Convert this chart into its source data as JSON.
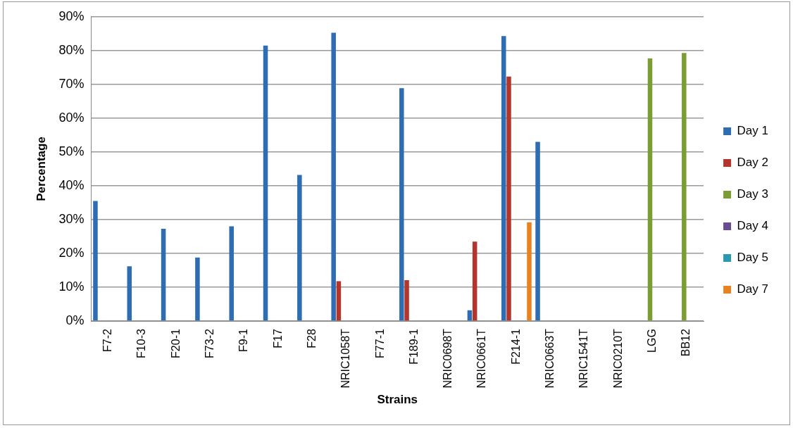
{
  "chart_data": {
    "type": "bar",
    "xlabel": "Strains",
    "ylabel": "Percentage",
    "categories": [
      "F7-2",
      "F10-3",
      "F20-1",
      "F73-2",
      "F9-1",
      "F17",
      "F28",
      "NRIC1058T",
      "F77-1",
      "F189-1",
      "NRIC0698T",
      "NRIC0661T",
      "F214-1",
      "NRIC0663T",
      "NRIC1541T",
      "NRIC0210T",
      "LGG",
      "BB12"
    ],
    "series": [
      {
        "name": "Day 1",
        "color": "#2f6db3",
        "values": [
          35.5,
          16.2,
          27.3,
          18.8,
          28.0,
          81.5,
          43.2,
          85.3,
          null,
          68.9,
          null,
          3.2,
          84.3,
          53.0,
          null,
          null,
          null,
          null
        ]
      },
      {
        "name": "Day 2",
        "color": "#b3352b",
        "values": [
          null,
          null,
          null,
          null,
          null,
          null,
          null,
          11.8,
          null,
          12.1,
          null,
          23.5,
          72.3,
          null,
          null,
          null,
          null,
          null
        ]
      },
      {
        "name": "Day 3",
        "color": "#7c9c34",
        "values": [
          null,
          null,
          null,
          null,
          null,
          null,
          null,
          null,
          null,
          null,
          null,
          null,
          null,
          null,
          null,
          null,
          77.7,
          79.3
        ]
      },
      {
        "name": "Day 4",
        "color": "#6a4b8e",
        "values": [
          null,
          null,
          null,
          null,
          null,
          null,
          null,
          null,
          null,
          null,
          null,
          null,
          null,
          null,
          null,
          null,
          null,
          null
        ]
      },
      {
        "name": "Day 5",
        "color": "#2a98b0",
        "values": [
          null,
          null,
          null,
          null,
          null,
          null,
          null,
          null,
          null,
          null,
          null,
          null,
          null,
          null,
          null,
          null,
          null,
          null
        ]
      },
      {
        "name": "Day 7",
        "color": "#e8821e",
        "values": [
          null,
          null,
          null,
          null,
          null,
          null,
          null,
          null,
          null,
          null,
          null,
          null,
          29.2,
          null,
          null,
          null,
          null,
          null
        ]
      }
    ],
    "ylim": [
      0,
      90
    ],
    "yticks": [
      {
        "value": 0,
        "label": "0%"
      },
      {
        "value": 10,
        "label": "10%"
      },
      {
        "value": 20,
        "label": "20%"
      },
      {
        "value": 30,
        "label": "30%"
      },
      {
        "value": 40,
        "label": "40%"
      },
      {
        "value": 50,
        "label": "50%"
      },
      {
        "value": 60,
        "label": "60%"
      },
      {
        "value": 70,
        "label": "70%"
      },
      {
        "value": 80,
        "label": "80%"
      },
      {
        "value": 90,
        "label": "90%"
      }
    ],
    "grid": "y",
    "legend": "right"
  }
}
